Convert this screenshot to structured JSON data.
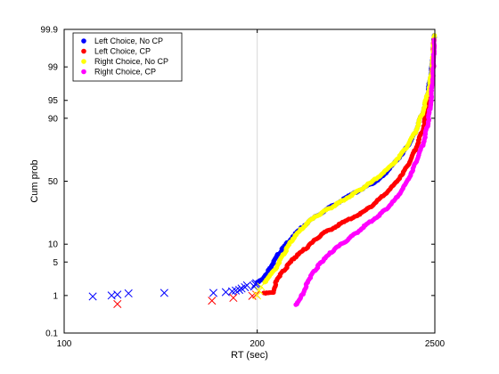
{
  "chart_data": {
    "type": "scatter",
    "title": "",
    "xlabel": "RT (sec)",
    "ylabel": "Cum prob",
    "x_scale": "reciprocal",
    "y_scale": "probit",
    "xlim": [
      100,
      2500
    ],
    "ylim": [
      0.1,
      99.9
    ],
    "xticks": [
      100,
      200,
      2500
    ],
    "yticks": [
      0.1,
      1,
      5,
      10,
      50,
      90,
      95,
      99,
      99.9
    ],
    "xtick_labels": [
      "100",
      "200",
      "2500"
    ],
    "ytick_labels": [
      "0.1",
      "1",
      "5",
      "10",
      "50",
      "90",
      "95",
      "99",
      "99.9"
    ],
    "grid": true,
    "legend_position": "top-left",
    "series": [
      {
        "name": "Left Choice, No CP",
        "color": "#0000ff",
        "points": [
          [
            200,
            2.0
          ],
          [
            206,
            2.4
          ],
          [
            215,
            4
          ],
          [
            225,
            7
          ],
          [
            245,
            13
          ],
          [
            270,
            20
          ],
          [
            310,
            28
          ],
          [
            380,
            38
          ],
          [
            450,
            45
          ],
          [
            550,
            52
          ],
          [
            700,
            65
          ],
          [
            900,
            76
          ],
          [
            1100,
            84
          ],
          [
            1400,
            92
          ],
          [
            1700,
            96
          ],
          [
            2000,
            98.6
          ],
          [
            2300,
            99.6
          ],
          [
            2400,
            99.85
          ]
        ],
        "outliers": [
          [
            108,
            0.95
          ],
          [
            114,
            1.0
          ],
          [
            116,
            1.05
          ],
          [
            120,
            1.12
          ],
          [
            135,
            1.15
          ],
          [
            163,
            1.15
          ],
          [
            172,
            1.2
          ],
          [
            177,
            1.25
          ],
          [
            180,
            1.3
          ],
          [
            183,
            1.35
          ],
          [
            185,
            1.45
          ],
          [
            188,
            1.55
          ],
          [
            190,
            1.7
          ],
          [
            197,
            1.6
          ],
          [
            198,
            1.8
          ],
          [
            199,
            1.9
          ]
        ]
      },
      {
        "name": "Left Choice, CP",
        "color": "#ff0000",
        "points": [
          [
            207,
            1.15
          ],
          [
            218,
            1.2
          ],
          [
            222,
            2.2
          ],
          [
            232,
            3.5
          ],
          [
            248,
            6
          ],
          [
            270,
            9
          ],
          [
            300,
            14
          ],
          [
            360,
            20
          ],
          [
            450,
            27
          ],
          [
            550,
            36
          ],
          [
            700,
            48
          ],
          [
            900,
            62
          ],
          [
            1100,
            74
          ],
          [
            1400,
            85
          ],
          [
            1700,
            93
          ],
          [
            2100,
            98.5
          ],
          [
            2350,
            99.8
          ]
        ],
        "outliers": [
          [
            116,
            0.62
          ],
          [
            162,
            0.75
          ],
          [
            178,
            0.88
          ],
          [
            195,
            0.98
          ],
          [
            199,
            1.05
          ]
        ]
      },
      {
        "name": "Right Choice, No CP",
        "color": "#ffff00",
        "points": [
          [
            208,
            2.0
          ],
          [
            215,
            3
          ],
          [
            222,
            4
          ],
          [
            232,
            7
          ],
          [
            245,
            12
          ],
          [
            270,
            20
          ],
          [
            300,
            26
          ],
          [
            340,
            32
          ],
          [
            400,
            40
          ],
          [
            500,
            50
          ],
          [
            650,
            62
          ],
          [
            850,
            74
          ],
          [
            1100,
            84
          ],
          [
            1400,
            92
          ],
          [
            1800,
            97
          ],
          [
            2100,
            98.8
          ],
          [
            2350,
            99.8
          ],
          [
            2450,
            99.85
          ]
        ],
        "outliers": [
          [
            200,
            1.0
          ],
          [
            202,
            1.3
          ],
          [
            204,
            1.6
          ]
        ]
      },
      {
        "name": "Right Choice, CP",
        "color": "#ff00ff",
        "points": [
          [
            250,
            0.6
          ],
          [
            262,
            1.1
          ],
          [
            270,
            2.0
          ],
          [
            285,
            3.5
          ],
          [
            300,
            5
          ],
          [
            330,
            8
          ],
          [
            380,
            12
          ],
          [
            450,
            18
          ],
          [
            550,
            25
          ],
          [
            700,
            35
          ],
          [
            900,
            50
          ],
          [
            1100,
            64
          ],
          [
            1400,
            77
          ],
          [
            1700,
            87
          ],
          [
            2000,
            95
          ],
          [
            2300,
            99
          ],
          [
            2400,
            99.8
          ]
        ],
        "outliers": []
      }
    ]
  }
}
